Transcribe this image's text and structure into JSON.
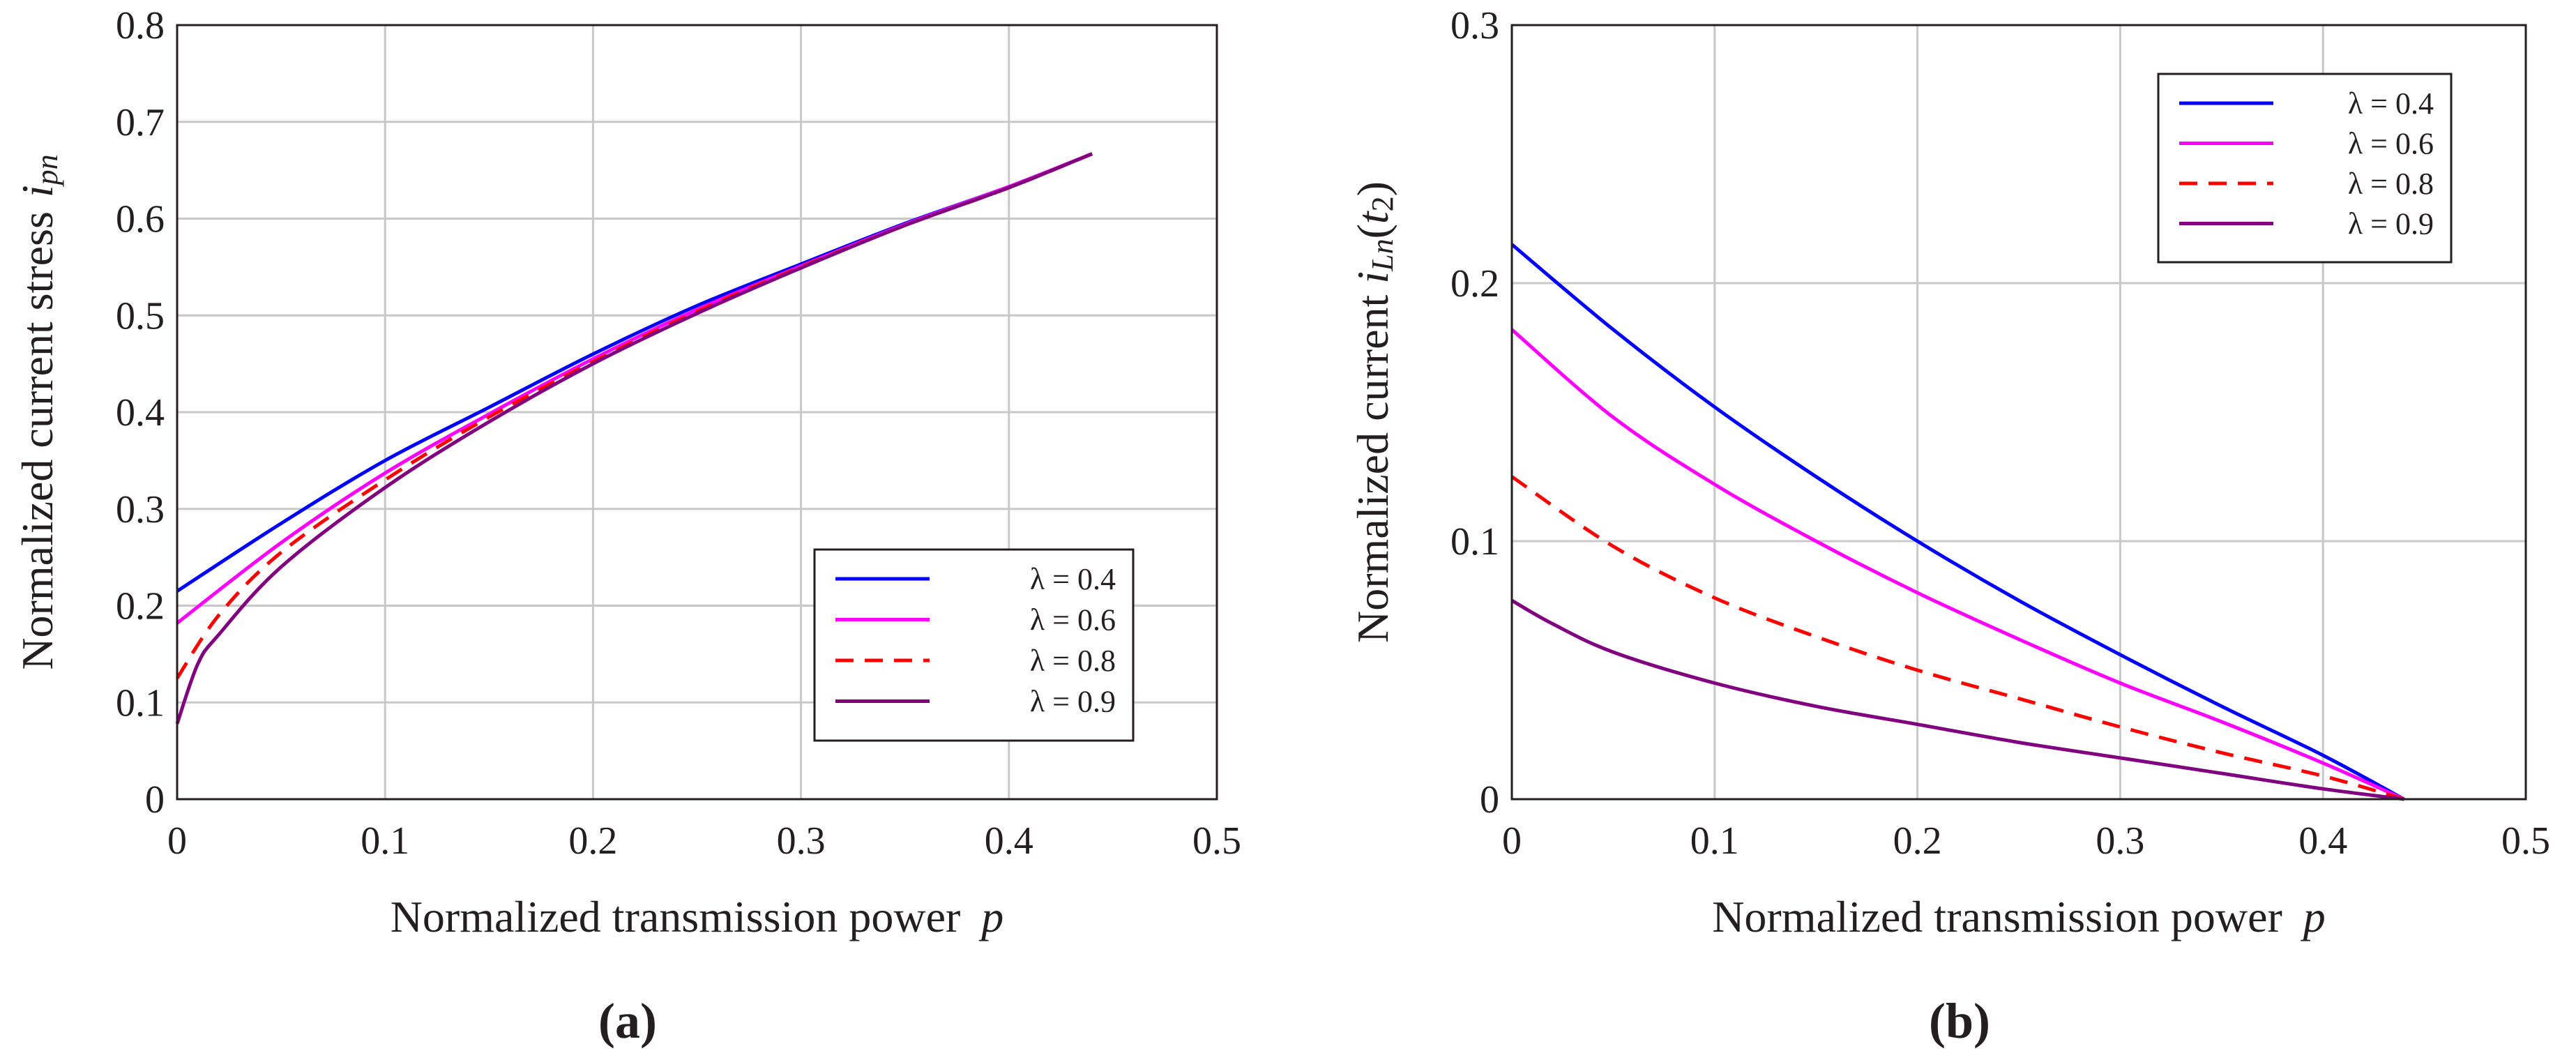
{
  "chart_data": [
    {
      "type": "line",
      "panel_label": "(a)",
      "xlabel": "Normalized transmission power",
      "xlabel_symbol": "p",
      "ylabel": "Normalized current stress",
      "ylabel_symbol": "i",
      "ylabel_subscript": "pn",
      "xlim": [
        0,
        0.5
      ],
      "ylim": [
        0,
        0.8
      ],
      "xticks": [
        "0",
        "0.1",
        "0.2",
        "0.3",
        "0.4",
        "0.5"
      ],
      "yticks": [
        "0",
        "0.1",
        "0.2",
        "0.3",
        "0.4",
        "0.5",
        "0.6",
        "0.7",
        "0.8"
      ],
      "grid": true,
      "legend_position": "lower-right",
      "series": [
        {
          "name": "λ = 0.4",
          "color": "#0000ff",
          "dash": "solid",
          "x": [
            0,
            0.05,
            0.1,
            0.15,
            0.2,
            0.25,
            0.3,
            0.35,
            0.4,
            0.44
          ],
          "y": [
            0.215,
            0.285,
            0.35,
            0.405,
            0.46,
            0.51,
            0.553,
            0.595,
            0.633,
            0.667
          ]
        },
        {
          "name": "λ = 0.6",
          "color": "#ff00ff",
          "dash": "solid",
          "x": [
            0,
            0.05,
            0.1,
            0.15,
            0.2,
            0.25,
            0.3,
            0.35,
            0.4,
            0.44
          ],
          "y": [
            0.182,
            0.265,
            0.337,
            0.398,
            0.455,
            0.506,
            0.551,
            0.594,
            0.633,
            0.667
          ]
        },
        {
          "name": "λ = 0.8",
          "color": "#ff0000",
          "dash": "dashed",
          "x": [
            0,
            0.02,
            0.05,
            0.1,
            0.15,
            0.2,
            0.25,
            0.3,
            0.35,
            0.4,
            0.44
          ],
          "y": [
            0.125,
            0.19,
            0.255,
            0.33,
            0.395,
            0.452,
            0.504,
            0.55,
            0.593,
            0.632,
            0.667
          ]
        },
        {
          "name": "λ = 0.9",
          "color": "#800080",
          "dash": "solid",
          "x": [
            0,
            0.01,
            0.02,
            0.05,
            0.1,
            0.15,
            0.2,
            0.25,
            0.3,
            0.35,
            0.4,
            0.44
          ],
          "y": [
            0.078,
            0.14,
            0.17,
            0.24,
            0.322,
            0.39,
            0.45,
            0.502,
            0.549,
            0.593,
            0.632,
            0.667
          ]
        }
      ]
    },
    {
      "type": "line",
      "panel_label": "(b)",
      "xlabel": "Normalized transmission power",
      "xlabel_symbol": "p",
      "ylabel": "Normalized current",
      "ylabel_symbol": "i",
      "ylabel_subscript": "Ln",
      "ylabel_arg": "t",
      "ylabel_arg_subscript": "2",
      "xlim": [
        0,
        0.5
      ],
      "ylim": [
        0,
        0.3
      ],
      "xticks": [
        "0",
        "0.1",
        "0.2",
        "0.3",
        "0.4",
        "0.5"
      ],
      "yticks": [
        "0",
        "0.1",
        "0.2",
        "0.3"
      ],
      "grid": true,
      "legend_position": "top-right",
      "series": [
        {
          "name": "λ = 0.4",
          "color": "#0000ff",
          "dash": "solid",
          "x": [
            0,
            0.05,
            0.1,
            0.15,
            0.2,
            0.25,
            0.3,
            0.35,
            0.4,
            0.44
          ],
          "y": [
            0.215,
            0.182,
            0.152,
            0.125,
            0.1,
            0.077,
            0.056,
            0.036,
            0.017,
            0.0
          ]
        },
        {
          "name": "λ = 0.6",
          "color": "#ff00ff",
          "dash": "solid",
          "x": [
            0,
            0.05,
            0.1,
            0.15,
            0.2,
            0.25,
            0.3,
            0.35,
            0.4,
            0.44
          ],
          "y": [
            0.182,
            0.148,
            0.122,
            0.1,
            0.08,
            0.062,
            0.045,
            0.03,
            0.014,
            0.0
          ]
        },
        {
          "name": "λ = 0.8",
          "color": "#ff0000",
          "dash": "dashed",
          "x": [
            0,
            0.05,
            0.1,
            0.15,
            0.2,
            0.25,
            0.3,
            0.35,
            0.4,
            0.44
          ],
          "y": [
            0.125,
            0.098,
            0.078,
            0.063,
            0.05,
            0.039,
            0.028,
            0.018,
            0.009,
            0.0
          ]
        },
        {
          "name": "λ = 0.9",
          "color": "#800080",
          "dash": "solid",
          "x": [
            0,
            0.02,
            0.05,
            0.1,
            0.15,
            0.2,
            0.25,
            0.3,
            0.35,
            0.4,
            0.44
          ],
          "y": [
            0.077,
            0.068,
            0.057,
            0.045,
            0.036,
            0.029,
            0.022,
            0.016,
            0.01,
            0.004,
            0.0
          ]
        }
      ]
    }
  ]
}
